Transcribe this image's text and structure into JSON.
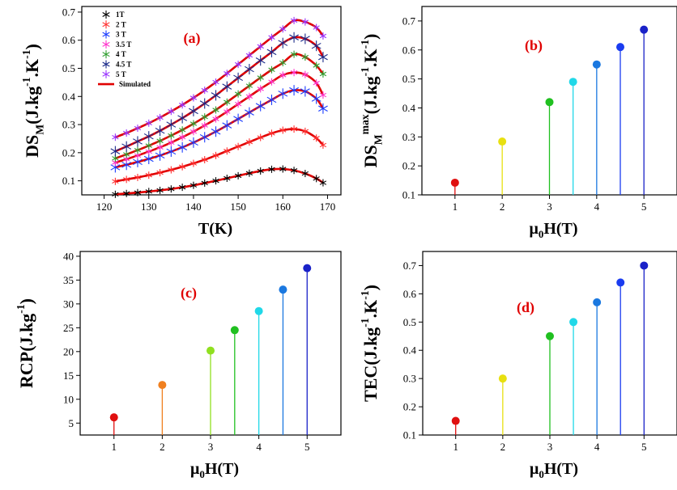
{
  "chart_data": [
    {
      "id": "a",
      "type": "line",
      "panel_label": "(a)",
      "xlabel": "T(K)",
      "ylabel": "DS_M(J.kg^-1.K^-1)",
      "xlim": [
        115,
        173
      ],
      "ylim": [
        0.05,
        0.72
      ],
      "xticks": [
        120,
        130,
        140,
        150,
        160,
        170
      ],
      "yticks": [
        0.1,
        0.2,
        0.3,
        0.4,
        0.5,
        0.6,
        0.7
      ],
      "legend_position": "top-left",
      "simulated_label": "Simulated",
      "simulated_color": "#e00000",
      "x": [
        122.5,
        125,
        127.5,
        130,
        132.5,
        135,
        137.5,
        140,
        142.5,
        145,
        147.5,
        150,
        152.5,
        155,
        157.5,
        160,
        162.5,
        165,
        167.5,
        169
      ],
      "series": [
        {
          "name": "1T",
          "color": "#000000",
          "marker": "star6",
          "peak_x": 157,
          "values": [
            0.052,
            0.055,
            0.058,
            0.062,
            0.066,
            0.071,
            0.077,
            0.084,
            0.092,
            0.1,
            0.109,
            0.118,
            0.127,
            0.135,
            0.141,
            0.142,
            0.137,
            0.126,
            0.108,
            0.093
          ]
        },
        {
          "name": "2 T",
          "color": "#ff3030",
          "marker": "star6",
          "peak_x": 160,
          "values": [
            0.098,
            0.105,
            0.112,
            0.12,
            0.129,
            0.139,
            0.15,
            0.162,
            0.175,
            0.19,
            0.206,
            0.222,
            0.238,
            0.254,
            0.269,
            0.28,
            0.284,
            0.276,
            0.252,
            0.227
          ]
        },
        {
          "name": "3 T",
          "color": "#1a3cff",
          "marker": "star6",
          "peak_x": 160,
          "values": [
            0.148,
            0.157,
            0.167,
            0.178,
            0.19,
            0.204,
            0.219,
            0.236,
            0.255,
            0.275,
            0.297,
            0.32,
            0.343,
            0.366,
            0.388,
            0.41,
            0.422,
            0.418,
            0.392,
            0.357
          ]
        },
        {
          "name": "3.5 T",
          "color": "#ff33cc",
          "marker": "star6",
          "peak_x": 160,
          "values": [
            0.165,
            0.177,
            0.19,
            0.204,
            0.219,
            0.236,
            0.255,
            0.275,
            0.297,
            0.32,
            0.346,
            0.373,
            0.4,
            0.427,
            0.452,
            0.476,
            0.485,
            0.478,
            0.448,
            0.405
          ]
        },
        {
          "name": "4 T",
          "color": "#2e9e2e",
          "marker": "star6",
          "peak_x": 160,
          "values": [
            0.18,
            0.194,
            0.209,
            0.225,
            0.242,
            0.261,
            0.281,
            0.303,
            0.327,
            0.352,
            0.38,
            0.409,
            0.438,
            0.467,
            0.495,
            0.52,
            0.55,
            0.54,
            0.51,
            0.48
          ]
        },
        {
          "name": "4.5 T",
          "color": "#1a2a8a",
          "marker": "star6",
          "peak_x": 161,
          "values": [
            0.205,
            0.222,
            0.24,
            0.258,
            0.278,
            0.3,
            0.323,
            0.348,
            0.375,
            0.404,
            0.435,
            0.466,
            0.497,
            0.528,
            0.558,
            0.59,
            0.61,
            0.605,
            0.58,
            0.54
          ]
        },
        {
          "name": "5 T",
          "color": "#9933ff",
          "marker": "star6",
          "peak_x": 161,
          "values": [
            0.255,
            0.27,
            0.287,
            0.305,
            0.325,
            0.347,
            0.37,
            0.395,
            0.422,
            0.451,
            0.482,
            0.514,
            0.546,
            0.578,
            0.61,
            0.64,
            0.67,
            0.665,
            0.645,
            0.615
          ]
        }
      ]
    },
    {
      "id": "b",
      "type": "stem",
      "panel_label": "(b)",
      "xlabel": "μ0H(T)",
      "ylabel": "DS_M^max(J.kg^-1.K^-1)",
      "xlim": [
        0.3,
        5.7
      ],
      "ylim": [
        0.1,
        0.75
      ],
      "xticks": [
        1,
        2,
        3,
        4,
        5
      ],
      "yticks": [
        0.1,
        0.2,
        0.3,
        0.4,
        0.5,
        0.6,
        0.7
      ],
      "x": [
        1,
        2,
        3,
        3.5,
        4,
        4.5,
        5
      ],
      "values": [
        0.142,
        0.284,
        0.42,
        0.49,
        0.55,
        0.61,
        0.67
      ],
      "colors": [
        "#e01010",
        "#e8e010",
        "#20c020",
        "#20d8e8",
        "#1a78e0",
        "#1a3cf0",
        "#1a22c8"
      ]
    },
    {
      "id": "c",
      "type": "stem",
      "panel_label": "(c)",
      "xlabel": "μ0H(T)",
      "ylabel": "RCP(J.kg^-1)",
      "xlim": [
        0.3,
        5.7
      ],
      "ylim": [
        2.5,
        41
      ],
      "xticks": [
        1,
        2,
        3,
        4,
        5
      ],
      "yticks": [
        5,
        10,
        15,
        20,
        25,
        30,
        35,
        40
      ],
      "x": [
        1,
        2,
        3,
        3.5,
        4,
        4.5,
        5
      ],
      "values": [
        6.2,
        13.0,
        20.2,
        24.5,
        28.5,
        33.0,
        37.5
      ],
      "colors": [
        "#e01010",
        "#f08020",
        "#90e020",
        "#20c020",
        "#20d8e8",
        "#1a78e0",
        "#1a22c8"
      ]
    },
    {
      "id": "d",
      "type": "stem",
      "panel_label": "(d)",
      "xlabel": "μ0H(T)",
      "ylabel": "TEC(J.kg^-1.K^-1)",
      "xlim": [
        0.3,
        5.7
      ],
      "ylim": [
        0.1,
        0.75
      ],
      "xticks": [
        1,
        2,
        3,
        4,
        5
      ],
      "yticks": [
        0.1,
        0.2,
        0.3,
        0.4,
        0.5,
        0.6,
        0.7
      ],
      "x": [
        1,
        2,
        3,
        3.5,
        4,
        4.5,
        5
      ],
      "values": [
        0.15,
        0.3,
        0.45,
        0.5,
        0.57,
        0.64,
        0.7
      ],
      "colors": [
        "#e01010",
        "#e8e010",
        "#20c020",
        "#20d8e8",
        "#1a78e0",
        "#1a3cf0",
        "#1a22c8"
      ]
    }
  ]
}
